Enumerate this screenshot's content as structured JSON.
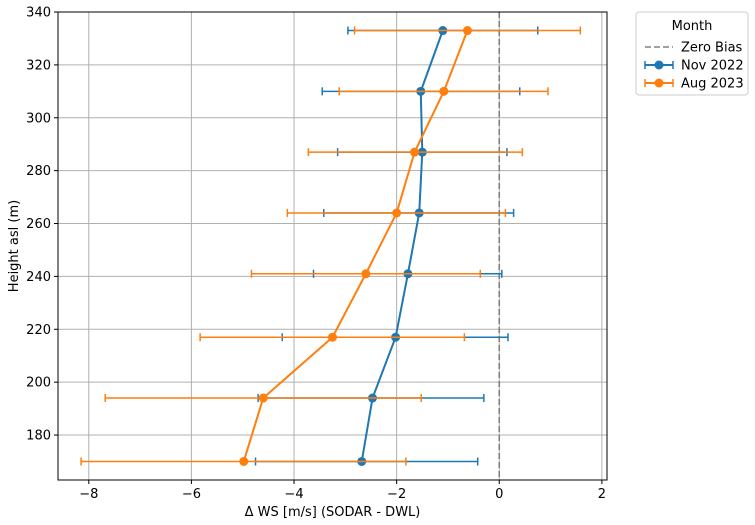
{
  "chart_data": {
    "type": "line",
    "xlabel": "Δ WS [m/s] (SODAR - DWL)",
    "ylabel": "Height asl (m)",
    "xlim": [
      -8.6,
      2.1
    ],
    "ylim": [
      163,
      340
    ],
    "xticks": [
      -8,
      -6,
      -4,
      -2,
      0,
      2
    ],
    "xtick_labels": [
      "−8",
      "−6",
      "−4",
      "−2",
      "0",
      "2"
    ],
    "yticks": [
      180,
      200,
      220,
      240,
      260,
      280,
      300,
      320,
      340
    ],
    "ytick_labels": [
      "180",
      "200",
      "220",
      "240",
      "260",
      "280",
      "300",
      "320",
      "340"
    ],
    "grid": true,
    "legend": {
      "title": "Month",
      "placement": "outside-top-right",
      "zero_bias_label": "Zero Bias"
    },
    "reference_line": {
      "x": 0,
      "style": "dashed",
      "color": "#808080"
    },
    "series": [
      {
        "name": "Nov 2022",
        "color": "#1f77b4",
        "points": [
          {
            "y": 170,
            "x": -2.68,
            "xerr_low": -4.75,
            "xerr_high": -0.42
          },
          {
            "y": 194,
            "x": -2.47,
            "xerr_low": -4.7,
            "xerr_high": -0.3
          },
          {
            "y": 217,
            "x": -2.02,
            "xerr_low": -4.23,
            "xerr_high": 0.17
          },
          {
            "y": 241,
            "x": -1.78,
            "xerr_low": -3.62,
            "xerr_high": 0.05
          },
          {
            "y": 264,
            "x": -1.56,
            "xerr_low": -3.42,
            "xerr_high": 0.28
          },
          {
            "y": 287,
            "x": -1.5,
            "xerr_low": -3.15,
            "xerr_high": 0.15
          },
          {
            "y": 310,
            "x": -1.53,
            "xerr_low": -3.45,
            "xerr_high": 0.4
          },
          {
            "y": 333,
            "x": -1.1,
            "xerr_low": -2.95,
            "xerr_high": 0.75
          }
        ]
      },
      {
        "name": "Aug 2023",
        "color": "#ff7f0e",
        "points": [
          {
            "y": 170,
            "x": -4.98,
            "xerr_low": -8.15,
            "xerr_high": -1.82
          },
          {
            "y": 194,
            "x": -4.6,
            "xerr_low": -7.68,
            "xerr_high": -1.52
          },
          {
            "y": 217,
            "x": -3.25,
            "xerr_low": -5.83,
            "xerr_high": -0.68
          },
          {
            "y": 241,
            "x": -2.6,
            "xerr_low": -4.83,
            "xerr_high": -0.37
          },
          {
            "y": 264,
            "x": -2.0,
            "xerr_low": -4.13,
            "xerr_high": 0.12
          },
          {
            "y": 287,
            "x": -1.65,
            "xerr_low": -3.72,
            "xerr_high": 0.45
          },
          {
            "y": 310,
            "x": -1.08,
            "xerr_low": -3.12,
            "xerr_high": 0.95
          },
          {
            "y": 333,
            "x": -0.62,
            "xerr_low": -2.82,
            "xerr_high": 1.58
          }
        ]
      }
    ]
  }
}
